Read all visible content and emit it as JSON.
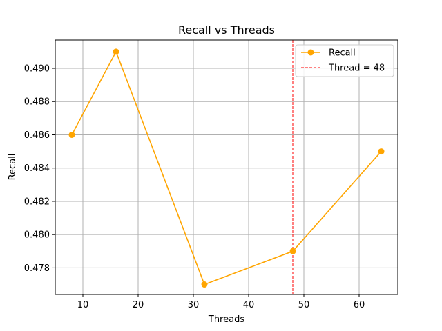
{
  "chart_data": {
    "type": "line",
    "title": "Recall vs Threads",
    "xlabel": "Threads",
    "ylabel": "Recall",
    "xlim": [
      5,
      67
    ],
    "ylim": [
      0.4764,
      0.4917
    ],
    "xticks": [
      10,
      20,
      30,
      40,
      50,
      60
    ],
    "yticks": [
      0.478,
      0.48,
      0.482,
      0.484,
      0.486,
      0.488,
      0.49
    ],
    "xtick_labels": [
      "10",
      "20",
      "30",
      "40",
      "50",
      "60"
    ],
    "ytick_labels": [
      "0.478",
      "0.480",
      "0.482",
      "0.484",
      "0.486",
      "0.488",
      "0.490"
    ],
    "grid": true,
    "legend_position": "top-right",
    "series": [
      {
        "name": "Recall",
        "color": "#ffa500",
        "x": [
          8,
          16,
          32,
          48,
          64
        ],
        "y": [
          0.486,
          0.491,
          0.477,
          0.479,
          0.485
        ]
      }
    ],
    "reference_line": {
      "name": "Thread = 48",
      "axis": "x",
      "value": 48,
      "color": "#ff0000",
      "style": "dashed"
    }
  }
}
